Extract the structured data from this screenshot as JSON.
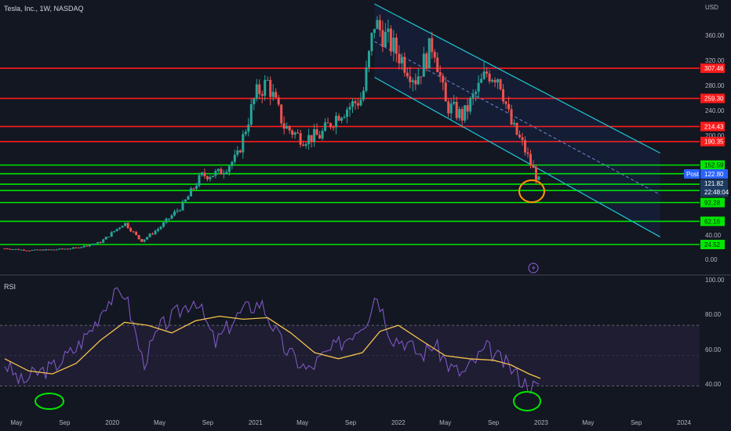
{
  "header": {
    "symbol_line": "Tesla, Inc., 1W, NASDAQ"
  },
  "rsi_panel": {
    "title": "RSI"
  },
  "colors": {
    "background": "#131722",
    "up": "#26a69a",
    "down": "#ef5350",
    "support": "#00e600",
    "resistance": "#ff1a1a",
    "channel": "#1fc7d4",
    "rsi_line": "#7e57c2",
    "rsi_ma": "#f5c24b",
    "highlight_orange": "#ff9800",
    "highlight_green": "#00e600"
  },
  "chart_data": [
    {
      "type": "candlestick",
      "title": "",
      "currency_label": "USD",
      "y_ticks": [
        "360.00",
        "320.00",
        "280.00",
        "240.00",
        "200.00",
        "40.00",
        "0.00"
      ],
      "x_ticks": [
        "May",
        "Sep",
        "2020",
        "May",
        "Sep",
        "2021",
        "May",
        "Sep",
        "2022",
        "May",
        "Sep",
        "2023",
        "May",
        "Sep",
        "2024"
      ],
      "ylim": [
        0,
        420
      ],
      "horizontal_levels": [
        {
          "value": 307.46,
          "label": "307.46",
          "kind": "resistance"
        },
        {
          "value": 259.3,
          "label": "259.30",
          "kind": "resistance"
        },
        {
          "value": 214.43,
          "label": "214.43",
          "kind": "resistance"
        },
        {
          "value": 190.35,
          "label": "190.35",
          "kind": "resistance"
        },
        {
          "value": 152.59,
          "label": "152.59",
          "kind": "support"
        },
        {
          "value": 138.67,
          "label": "138.67",
          "kind": "support"
        },
        {
          "value": 121.82,
          "label": "121.82",
          "kind": "support"
        },
        {
          "value": 111.73,
          "label": "111.73",
          "kind": "support"
        },
        {
          "value": 92.28,
          "label": "92.28",
          "kind": "support"
        },
        {
          "value": 62.16,
          "label": "62.16",
          "kind": "support"
        },
        {
          "value": 24.52,
          "label": "24.52",
          "kind": "support"
        }
      ],
      "price_badges": [
        {
          "label": "Post",
          "value": "122.80"
        },
        {
          "label": "",
          "value": "121.82"
        },
        {
          "label": "",
          "value": "22:48:04"
        }
      ],
      "channel": {
        "upper": [
          [
            "2021-11-01",
            410
          ],
          [
            "2023-11-01",
            172
          ]
        ],
        "lower": [
          [
            "2021-11-01",
            293
          ],
          [
            "2023-11-01",
            37
          ]
        ],
        "mid": [
          [
            "2021-11-01",
            350
          ],
          [
            "2023-11-01",
            105
          ]
        ]
      },
      "price_series": [
        [
          "2019-04-01",
          18
        ],
        [
          "2019-06-01",
          15
        ],
        [
          "2019-08-01",
          16
        ],
        [
          "2019-10-01",
          19
        ],
        [
          "2019-12-01",
          28
        ],
        [
          "2020-02-01",
          60
        ],
        [
          "2020-03-15",
          30
        ],
        [
          "2020-05-01",
          52
        ],
        [
          "2020-07-01",
          90
        ],
        [
          "2020-08-15",
          135
        ],
        [
          "2020-10-01",
          140
        ],
        [
          "2020-11-15",
          165
        ],
        [
          "2021-01-01",
          265
        ],
        [
          "2021-02-01",
          285
        ],
        [
          "2021-03-15",
          215
        ],
        [
          "2021-05-01",
          195
        ],
        [
          "2021-06-15",
          200
        ],
        [
          "2021-08-01",
          235
        ],
        [
          "2021-10-01",
          260
        ],
        [
          "2021-11-01",
          380
        ],
        [
          "2021-12-01",
          355
        ],
        [
          "2022-01-01",
          330
        ],
        [
          "2022-02-15",
          290
        ],
        [
          "2022-04-01",
          350
        ],
        [
          "2022-05-01",
          250
        ],
        [
          "2022-06-15",
          230
        ],
        [
          "2022-08-15",
          300
        ],
        [
          "2022-09-15",
          295
        ],
        [
          "2022-10-15",
          220
        ],
        [
          "2022-11-15",
          185
        ],
        [
          "2022-12-15",
          140
        ],
        [
          "2022-12-30",
          121.82
        ]
      ]
    },
    {
      "type": "line",
      "title": "RSI",
      "y_ticks": [
        "100.00",
        "80.00",
        "60.00",
        "40.00"
      ],
      "ylim": [
        20,
        100
      ],
      "band": [
        30,
        70
      ],
      "rsi_series": [
        [
          "2019-04-01",
          45
        ],
        [
          "2019-05-15",
          32
        ],
        [
          "2019-06-15",
          38
        ],
        [
          "2019-08-01",
          42
        ],
        [
          "2019-10-01",
          55
        ],
        [
          "2019-11-15",
          70
        ],
        [
          "2019-12-15",
          85
        ],
        [
          "2020-02-01",
          93
        ],
        [
          "2020-03-20",
          45
        ],
        [
          "2020-05-01",
          68
        ],
        [
          "2020-06-15",
          78
        ],
        [
          "2020-08-01",
          88
        ],
        [
          "2020-09-20",
          58
        ],
        [
          "2020-11-01",
          72
        ],
        [
          "2020-12-01",
          80
        ],
        [
          "2021-01-15",
          85
        ],
        [
          "2021-03-15",
          55
        ],
        [
          "2021-05-15",
          40
        ],
        [
          "2021-06-15",
          48
        ],
        [
          "2021-08-15",
          60
        ],
        [
          "2021-10-15",
          75
        ],
        [
          "2021-11-05",
          92
        ],
        [
          "2021-12-15",
          62
        ],
        [
          "2022-01-15",
          60
        ],
        [
          "2022-03-01",
          50
        ],
        [
          "2022-04-01",
          58
        ],
        [
          "2022-05-15",
          42
        ],
        [
          "2022-06-15",
          38
        ],
        [
          "2022-08-15",
          55
        ],
        [
          "2022-09-15",
          48
        ],
        [
          "2022-10-15",
          42
        ],
        [
          "2022-11-15",
          33
        ],
        [
          "2022-12-30",
          28
        ]
      ],
      "rsi_ma_series": [
        [
          "2019-04-01",
          48
        ],
        [
          "2019-06-01",
          40
        ],
        [
          "2019-08-01",
          38
        ],
        [
          "2019-10-01",
          45
        ],
        [
          "2019-12-01",
          60
        ],
        [
          "2020-02-01",
          72
        ],
        [
          "2020-04-01",
          70
        ],
        [
          "2020-06-01",
          65
        ],
        [
          "2020-08-01",
          73
        ],
        [
          "2020-10-01",
          76
        ],
        [
          "2020-12-01",
          74
        ],
        [
          "2021-02-01",
          75
        ],
        [
          "2021-04-01",
          65
        ],
        [
          "2021-06-01",
          52
        ],
        [
          "2021-08-01",
          48
        ],
        [
          "2021-10-01",
          52
        ],
        [
          "2021-11-15",
          66
        ],
        [
          "2022-01-01",
          70
        ],
        [
          "2022-03-01",
          60
        ],
        [
          "2022-05-01",
          50
        ],
        [
          "2022-07-01",
          48
        ],
        [
          "2022-09-01",
          47
        ],
        [
          "2022-10-15",
          44
        ],
        [
          "2022-12-01",
          38
        ],
        [
          "2022-12-30",
          35
        ]
      ]
    }
  ]
}
